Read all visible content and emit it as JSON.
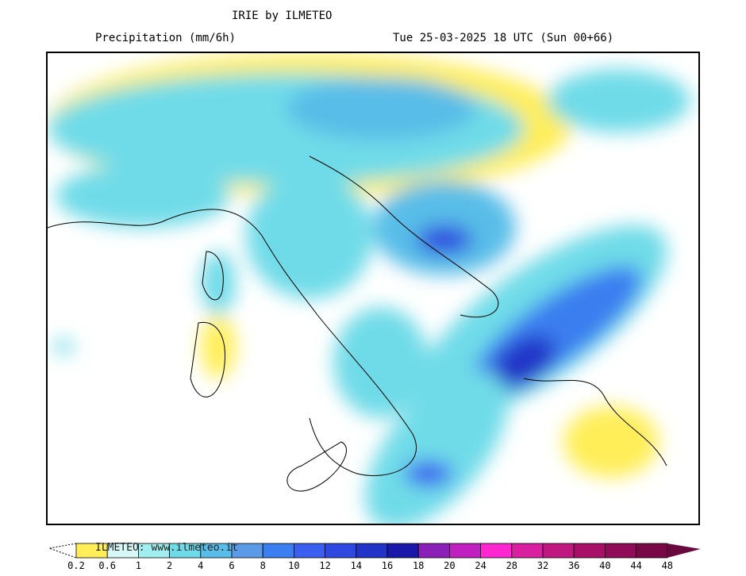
{
  "header": {
    "title": "IRIE by ILMETEO",
    "subtitle": "Precipitation (mm/6h)",
    "valid_time": "Tue 25-03-2025 18 UTC (Sun 00+66)"
  },
  "legend": {
    "watermark": "ILMETEO: www.ilmeteo.it",
    "labels": [
      "0.2",
      "0.6",
      "1",
      "2",
      "4",
      "6",
      "8",
      "10",
      "12",
      "14",
      "16",
      "18",
      "20",
      "24",
      "28",
      "32",
      "36",
      "40",
      "44",
      "48"
    ],
    "colors": [
      "#ffee58",
      "#d8f8f8",
      "#a0eef0",
      "#70dbe8",
      "#58bde8",
      "#5a9ae6",
      "#3a7ef0",
      "#3a5ff0",
      "#2e48e0",
      "#2234c8",
      "#1a18a8",
      "#8a20b8",
      "#c020c0",
      "#ff28d0",
      "#d820a0",
      "#c01880",
      "#a81068",
      "#900c58",
      "#780848"
    ]
  }
}
